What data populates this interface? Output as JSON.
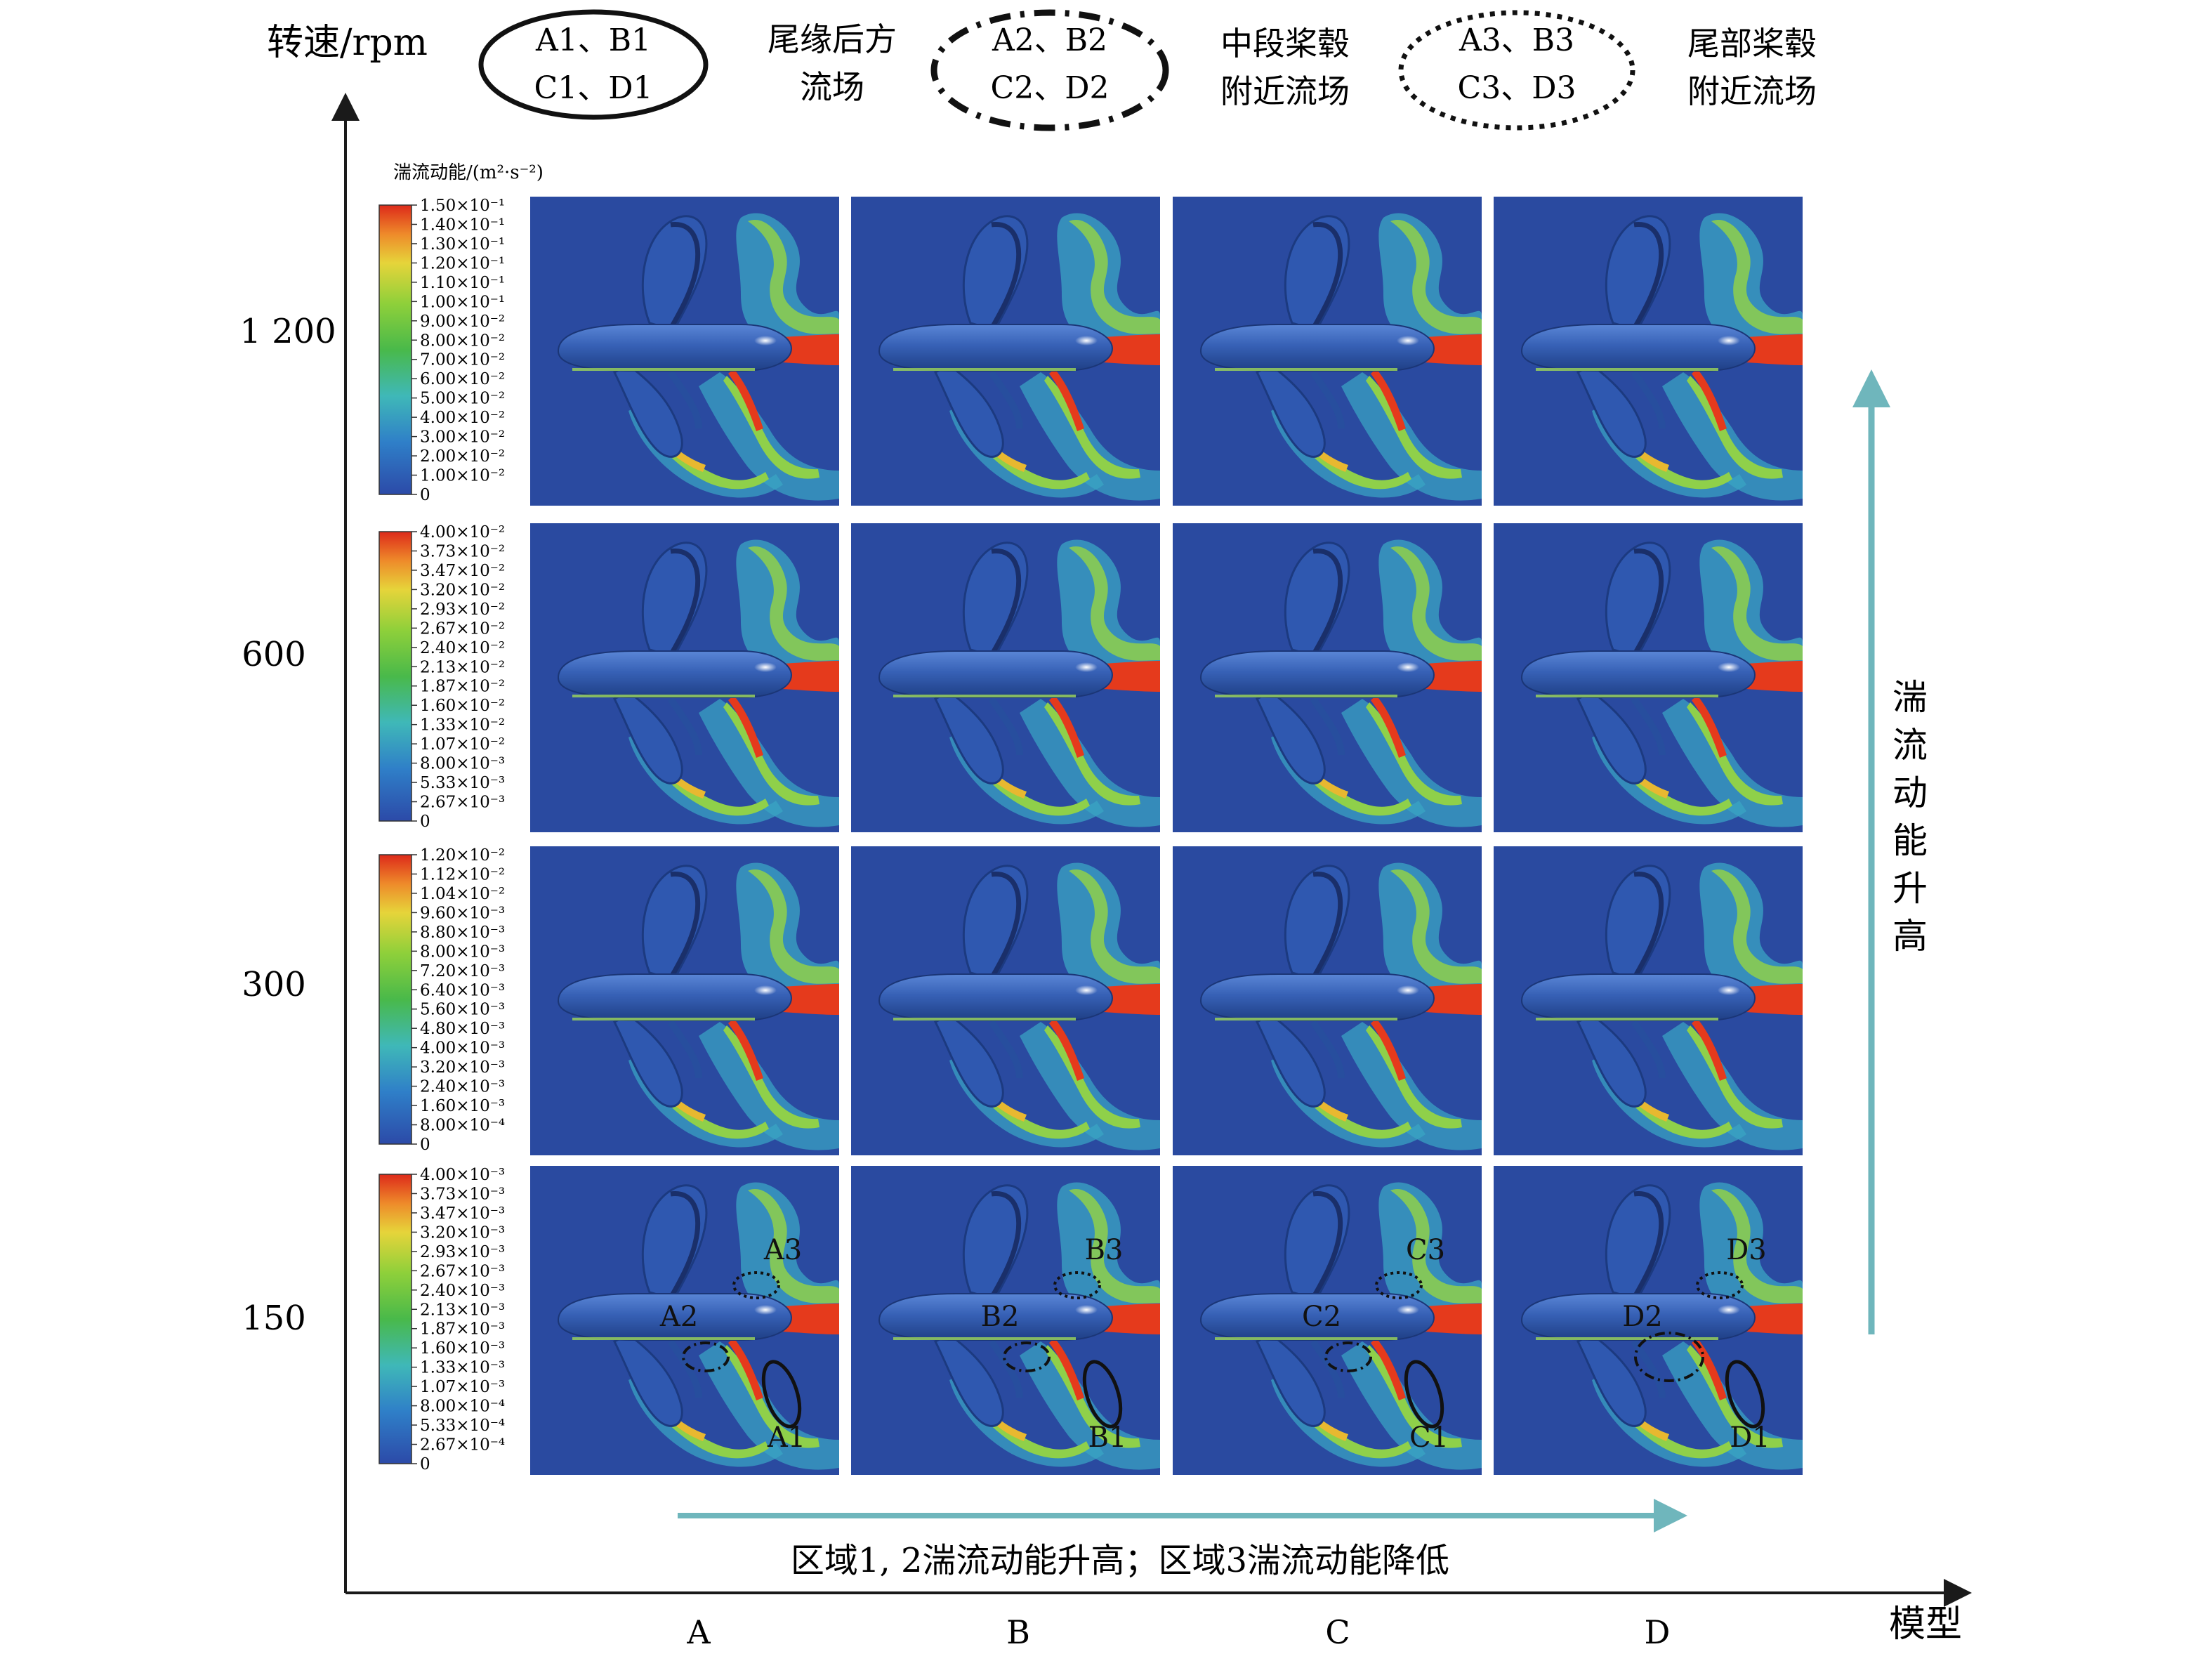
{
  "y_axis": {
    "label": "转速/rpm",
    "ticks": [
      "1 200",
      "600",
      "300",
      "150"
    ]
  },
  "x_axis": {
    "label": "模型",
    "ticks": [
      "A",
      "B",
      "C",
      "D"
    ]
  },
  "legend": [
    {
      "style": "solid",
      "line1": "A1、B1",
      "line2": "C1、D1",
      "desc1": "尾缘后方",
      "desc2": "流场"
    },
    {
      "style": "dash-dot",
      "line1": "A2、B2",
      "line2": "C2、D2",
      "desc1": "中段桨毂",
      "desc2": "附近流场"
    },
    {
      "style": "dotted",
      "line1": "A3、B3",
      "line2": "C3、D3",
      "desc1": "尾部桨毂",
      "desc2": "附近流场"
    }
  ],
  "colorbar_title": "湍流动能/(m²·s⁻²)",
  "colorbars": [
    {
      "labels": [
        "1.50×10⁻¹",
        "1.40×10⁻¹",
        "1.30×10⁻¹",
        "1.20×10⁻¹",
        "1.10×10⁻¹",
        "1.00×10⁻¹",
        "9.00×10⁻²",
        "8.00×10⁻²",
        "7.00×10⁻²",
        "6.00×10⁻²",
        "5.00×10⁻²",
        "4.00×10⁻²",
        "3.00×10⁻²",
        "2.00×10⁻²",
        "1.00×10⁻²",
        "0"
      ]
    },
    {
      "labels": [
        "4.00×10⁻²",
        "3.73×10⁻²",
        "3.47×10⁻²",
        "3.20×10⁻²",
        "2.93×10⁻²",
        "2.67×10⁻²",
        "2.40×10⁻²",
        "2.13×10⁻²",
        "1.87×10⁻²",
        "1.60×10⁻²",
        "1.33×10⁻²",
        "1.07×10⁻²",
        "8.00×10⁻³",
        "5.33×10⁻³",
        "2.67×10⁻³",
        "0"
      ]
    },
    {
      "labels": [
        "1.20×10⁻²",
        "1.12×10⁻²",
        "1.04×10⁻²",
        "9.60×10⁻³",
        "8.80×10⁻³",
        "8.00×10⁻³",
        "7.20×10⁻³",
        "6.40×10⁻³",
        "5.60×10⁻³",
        "4.80×10⁻³",
        "4.00×10⁻³",
        "3.20×10⁻³",
        "2.40×10⁻³",
        "1.60×10⁻³",
        "8.00×10⁻⁴",
        "0"
      ]
    },
    {
      "labels": [
        "4.00×10⁻³",
        "3.73×10⁻³",
        "3.47×10⁻³",
        "3.20×10⁻³",
        "2.93×10⁻³",
        "2.67×10⁻³",
        "2.40×10⁻³",
        "2.13×10⁻³",
        "1.87×10⁻³",
        "1.60×10⁻³",
        "1.33×10⁻³",
        "1.07×10⁻³",
        "8.00×10⁻⁴",
        "5.33×10⁻⁴",
        "2.67×10⁻⁴",
        "0"
      ]
    }
  ],
  "region_labels": [
    {
      "r1": "A1",
      "r2": "A2",
      "r3": "A3"
    },
    {
      "r1": "B1",
      "r2": "B2",
      "r3": "B3"
    },
    {
      "r1": "C1",
      "r2": "C2",
      "r3": "C3"
    },
    {
      "r1": "D1",
      "r2": "D2",
      "r3": "D3"
    }
  ],
  "vertical_arrow_label": "湍流动能升高",
  "horizontal_arrow_label": "区域1, 2湍流动能升高；区域3湍流动能降低",
  "colors": {
    "field": "#2a4aa0",
    "hull": "#3560b8",
    "accent_arrow": "#6fb6bc",
    "wake_red": "#e53a1c",
    "wake_green": "#8fd04a",
    "wake_cyan": "#4ec8c6"
  }
}
